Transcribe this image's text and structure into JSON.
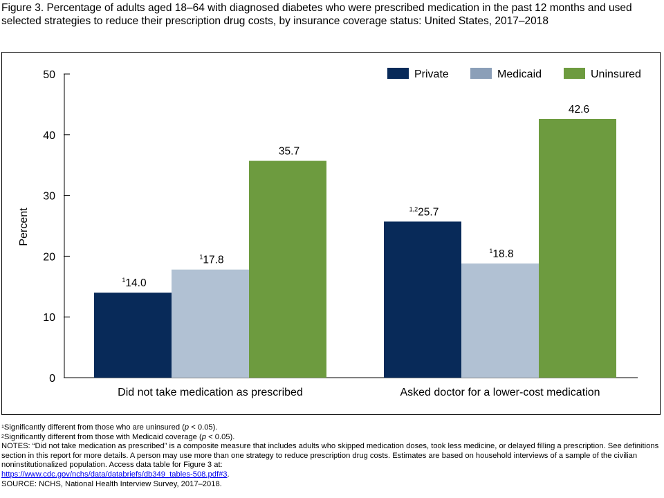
{
  "figure": {
    "title": "Figure 3. Percentage of adults aged 18–64 with diagnosed diabetes who were prescribed medication in the past 12 months and used selected strategies to reduce their prescription drug costs, by insurance coverage status: United States, 2017–2018"
  },
  "chart_data": {
    "type": "bar",
    "title": "",
    "xlabel": "",
    "ylabel": "Percent",
    "ylim": [
      0,
      50
    ],
    "yticks": [
      "0",
      "10",
      "20",
      "30",
      "40",
      "50"
    ],
    "grid": false,
    "legend_position": "top-right",
    "categories": [
      "Did not take medication as prescribed",
      "Asked doctor for a lower-cost medication"
    ],
    "series": [
      {
        "name": "Private",
        "color": "#082a59",
        "values": [
          14.0,
          25.7
        ],
        "labels": [
          "14.0",
          "25.7"
        ],
        "superscripts": [
          "1",
          "1,2"
        ]
      },
      {
        "name": "Medicaid",
        "color": "#b1c1d3",
        "values": [
          17.8,
          18.8
        ],
        "labels": [
          "17.8",
          "18.8"
        ],
        "superscripts": [
          "1",
          "1"
        ]
      },
      {
        "name": "Uninsured",
        "color": "#6d9b3f",
        "values": [
          35.7,
          42.6
        ],
        "labels": [
          "35.7",
          "42.6"
        ],
        "superscripts": [
          "",
          ""
        ]
      }
    ],
    "legend_swatch_colors": {
      "Private": "#082a59",
      "Medicaid": "#8b9fb8",
      "Uninsured": "#6d9b3f"
    }
  },
  "notes": {
    "fn1_sup": "1",
    "fn1_a": "Significantly different from those who are uninsured (",
    "fn1_p": "p",
    "fn1_b": " < 0.05).",
    "fn2_sup": "2",
    "fn2_a": "Significantly different from those with Medicaid coverage (",
    "fn2_p": "p",
    "fn2_b": " < 0.05).",
    "notes_text": "NOTES: “Did not take medication as prescribed” is a composite measure that includes adults who skipped medication doses, took less medicine, or delayed filling a prescription. See definitions section in this report for more details. A person may use more than one strategy to reduce prescription drug costs. Estimates are based on household interviews of a sample of the civilian noninstitutionalized population. Access data table for Figure 3 at:",
    "link": "https://www.cdc.gov/nchs/data/databriefs/db349_tables-508.pdf#3",
    "link_suffix": ".",
    "source": "SOURCE: NCHS, National Health Interview Survey, 2017–2018."
  }
}
